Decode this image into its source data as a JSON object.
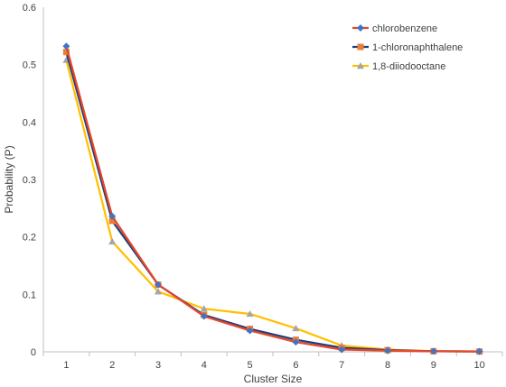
{
  "chart_data": {
    "type": "line",
    "title": "",
    "xlabel": "Cluster Size",
    "ylabel": "Probability (P)",
    "categories": [
      "1",
      "2",
      "3",
      "4",
      "5",
      "6",
      "7",
      "8",
      "9",
      "10"
    ],
    "ylim": [
      0,
      0.6
    ],
    "yticks": [
      "0",
      "0.1",
      "0.2",
      "0.3",
      "0.4",
      "0.5",
      "0.6"
    ],
    "grid": false,
    "legend_position": "top-right",
    "series": [
      {
        "name": "chlorobenzene",
        "line_color": "#E8472B",
        "marker_color": "#4472C4",
        "marker": "diamond",
        "values": [
          0.532,
          0.236,
          0.117,
          0.062,
          0.037,
          0.017,
          0.004,
          0.002,
          0.001,
          0.0005
        ]
      },
      {
        "name": "1-chloronaphthalene",
        "line_color": "#1F3F7A",
        "marker_color": "#ED7D31",
        "marker": "square",
        "values": [
          0.522,
          0.228,
          0.117,
          0.064,
          0.04,
          0.021,
          0.007,
          0.003,
          0.001,
          0.0005
        ]
      },
      {
        "name": "1,8-diiodooctane",
        "line_color": "#FFC000",
        "marker_color": "#A5A5A5",
        "marker": "triangle",
        "values": [
          0.508,
          0.192,
          0.105,
          0.075,
          0.066,
          0.041,
          0.011,
          0.004,
          0.001,
          0.0005
        ]
      }
    ]
  }
}
